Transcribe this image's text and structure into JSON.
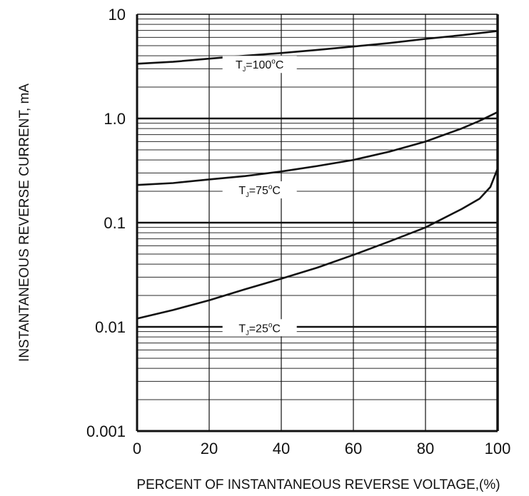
{
  "chart_data": {
    "type": "line",
    "xlabel": "PERCENT OF INSTANTANEOUS REVERSE VOLTAGE,(%)",
    "ylabel": "INSTANTANEOUS  REVERSE  CURRENT,  mA",
    "xlim": [
      0,
      100
    ],
    "ylim": [
      0.001,
      10
    ],
    "yscale": "log",
    "grid": true,
    "x_ticks": [
      0,
      20,
      40,
      60,
      80,
      100
    ],
    "x_tick_labels": [
      "0",
      "20",
      "40",
      "60",
      "80",
      "100"
    ],
    "y_ticks": [
      0.001,
      0.01,
      0.1,
      1,
      10
    ],
    "y_tick_labels": [
      "0.001",
      "0.01",
      "0.1",
      "1.0",
      "10"
    ],
    "series": [
      {
        "name": "TJ=100°C",
        "label_parts": {
          "main": "T",
          "sub": "J",
          "eq": "=100",
          "deg": "o",
          "unit": "C"
        },
        "x": [
          0,
          10,
          20,
          30,
          40,
          50,
          60,
          70,
          80,
          90,
          100
        ],
        "y": [
          3.35,
          3.5,
          3.75,
          4.0,
          4.25,
          4.55,
          4.9,
          5.3,
          5.8,
          6.3,
          6.9
        ]
      },
      {
        "name": "TJ=75°C",
        "label_parts": {
          "main": "T",
          "sub": "J",
          "eq": "=75",
          "deg": "o",
          "unit": "C"
        },
        "x": [
          0,
          10,
          20,
          30,
          40,
          50,
          60,
          70,
          80,
          90,
          95,
          100
        ],
        "y": [
          0.23,
          0.24,
          0.26,
          0.28,
          0.31,
          0.35,
          0.4,
          0.48,
          0.6,
          0.8,
          0.95,
          1.15
        ]
      },
      {
        "name": "TJ=25°C",
        "label_parts": {
          "main": "T",
          "sub": "J",
          "eq": "=25",
          "deg": "o",
          "unit": "C"
        },
        "x": [
          0,
          10,
          20,
          30,
          40,
          50,
          60,
          70,
          80,
          90,
          95,
          98,
          99,
          100
        ],
        "y": [
          0.012,
          0.0145,
          0.018,
          0.023,
          0.029,
          0.037,
          0.049,
          0.066,
          0.09,
          0.135,
          0.17,
          0.22,
          0.27,
          0.33
        ]
      }
    ]
  }
}
